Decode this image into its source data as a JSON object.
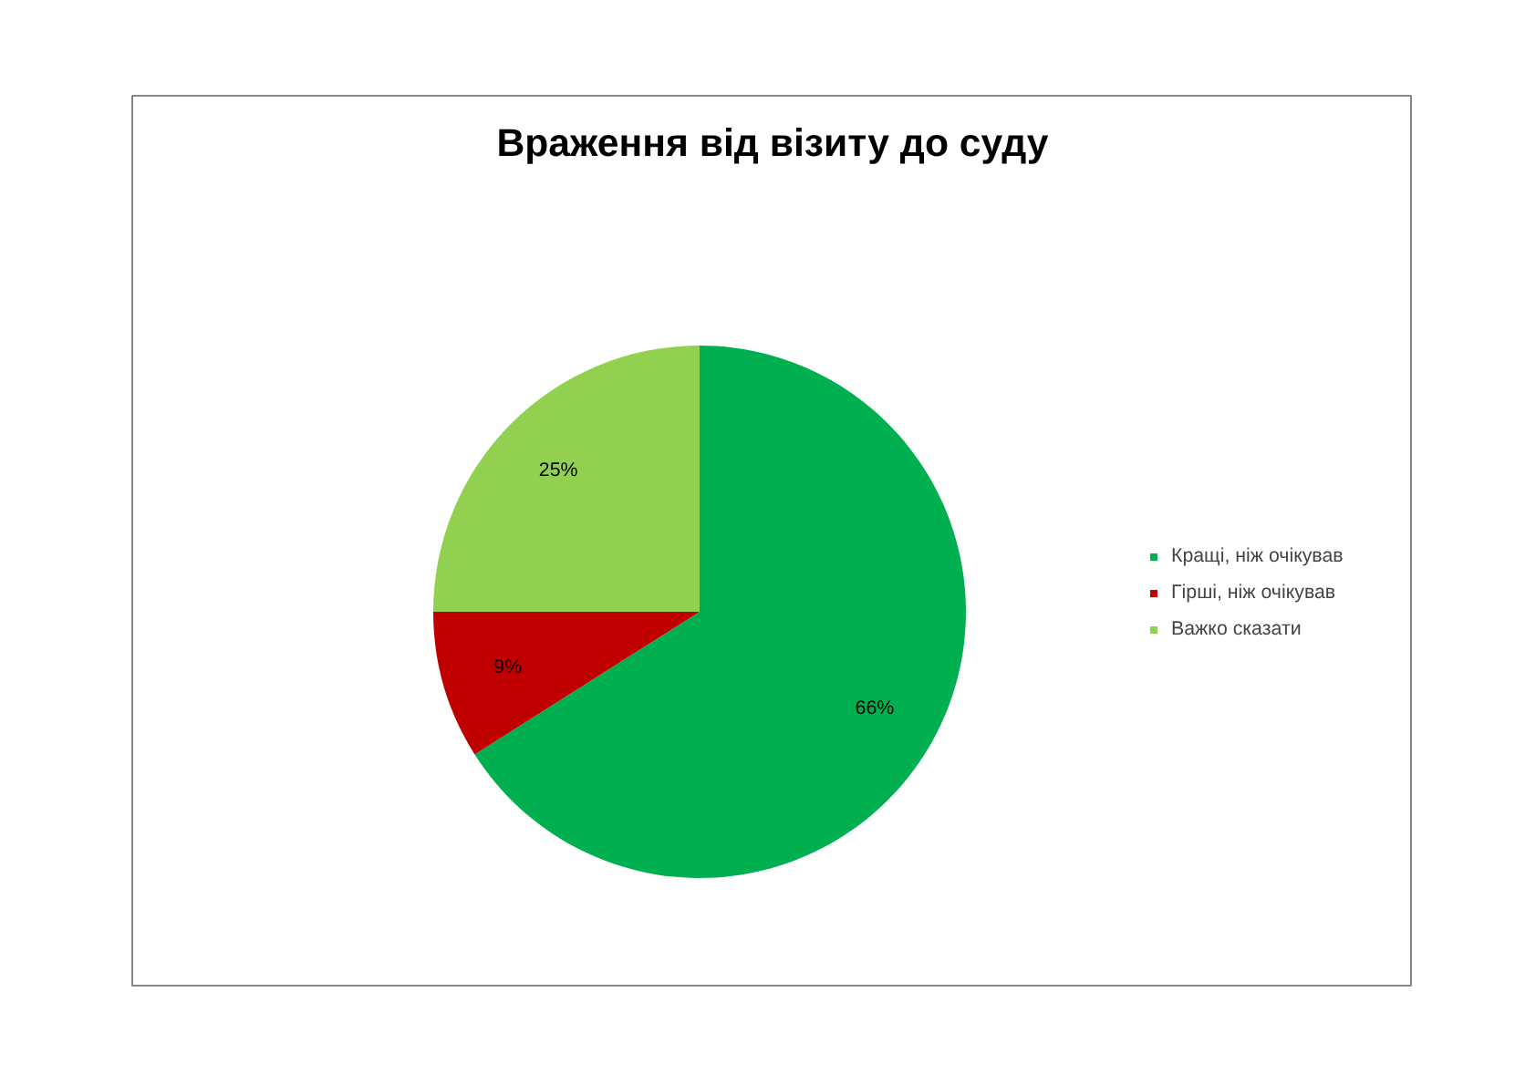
{
  "chart_data": {
    "type": "pie",
    "title": "Враження від візиту до суду",
    "categories": [
      "Кращі, ніж очікував",
      "Гірші, ніж очікував",
      "Важко сказати"
    ],
    "values": [
      66,
      9,
      25
    ],
    "colors": [
      "#00b050",
      "#c00000",
      "#92d050"
    ],
    "value_labels": [
      "66%",
      "9%",
      "25%"
    ],
    "legend": "right"
  }
}
